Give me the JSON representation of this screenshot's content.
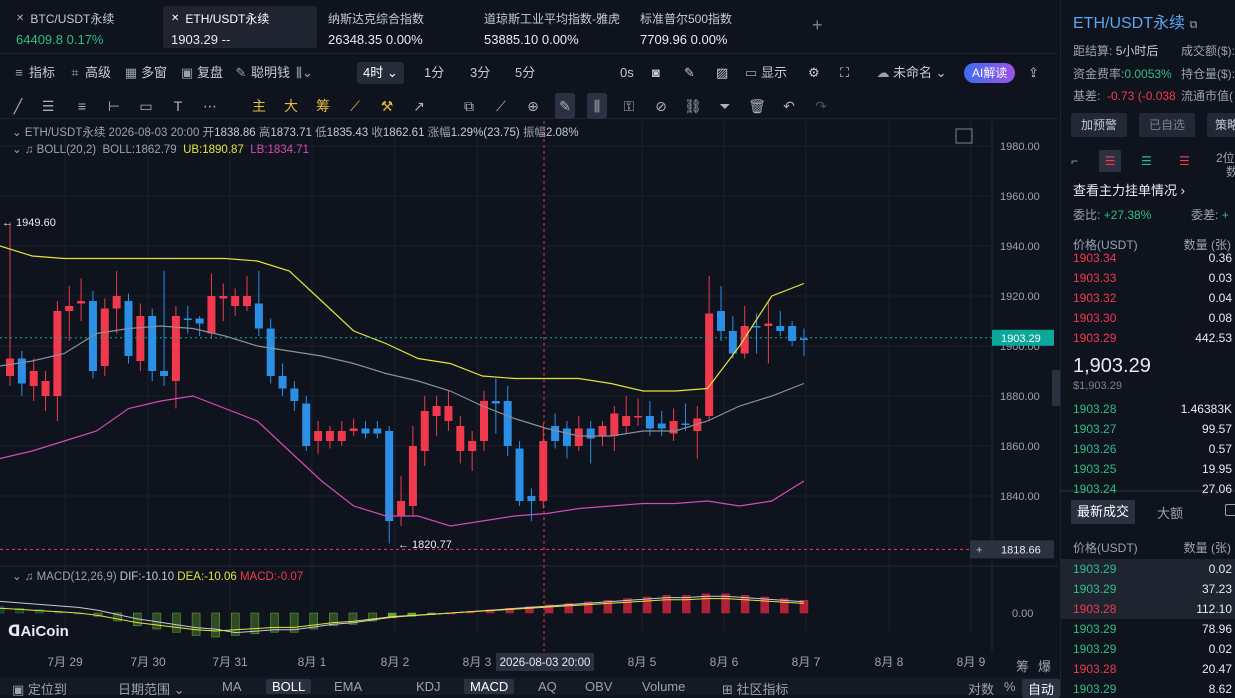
{
  "tickers": [
    {
      "name": "BTC/USDT永续",
      "price": "64409.8",
      "change": "0.17%",
      "color": "green"
    },
    {
      "name": "ETH/USDT永续",
      "price": "1903.29",
      "change": "--",
      "color": "white"
    },
    {
      "name": "纳斯达克综合指数",
      "price": "26348.35",
      "change": "0.00%",
      "color": "white"
    },
    {
      "name": "道琼斯工业平均指数-雅虎",
      "price": "53885.10",
      "change": "0.00%",
      "color": "white"
    },
    {
      "name": "标准普尔500指数",
      "price": "7709.96",
      "change": "0.00%",
      "color": "white"
    }
  ],
  "add_tab": "+",
  "toolbar": {
    "indicators": "指标",
    "advanced": "高级",
    "multi": "多窗",
    "replay": "复盘",
    "smart": "聪明钱",
    "interval": "4时",
    "i1": "1分",
    "i3": "3分",
    "i5": "5分",
    "zero": "0s",
    "display": "显示",
    "unnamed": "未命名",
    "ai": "AI解读"
  },
  "draw_tools": {
    "main": "主",
    "big": "大",
    "chip": "筹"
  },
  "legend": {
    "symbol": "ETH/USDT永续",
    "time": "2026-08-03 20:00",
    "open_l": "开",
    "open": "1838.86",
    "high_l": "高",
    "high": "1873.71",
    "low_l": "低",
    "low": "1835.43",
    "close_l": "收",
    "close": "1862.61",
    "chg_l": "涨幅",
    "chg": "1.29%(23.75)",
    "amp_l": "振幅",
    "amp": "2.08%",
    "boll_name": "BOLL(20,2)",
    "boll": "BOLL:1862.79",
    "ub": "UB:1890.87",
    "lb": "LB:1834.71",
    "macd_name": "MACD(12,26,9)",
    "dif": "DIF:-10.10",
    "dea": "DEA:-10.06",
    "macd": "MACD:-0.07"
  },
  "chart_data": {
    "type": "candlestick",
    "y_ticks": [
      "1980.00",
      "1960.00",
      "1940.00",
      "1920.00",
      "1900.00",
      "1880.00",
      "1860.00",
      "1840.00"
    ],
    "ylim": [
      1814,
      1990
    ],
    "x_ticks": [
      "7月 29",
      "7月 30",
      "7月 31",
      "8月 1",
      "8月 2",
      "8月 3",
      "8月 5",
      "8月 6",
      "8月 7",
      "8月 8",
      "8月 9"
    ],
    "crosshair_time": "2026-08-03 20:00",
    "current_price": "1903.29",
    "cursor_price": "1818.66",
    "high_mark": "1949.60",
    "low_mark": "1820.77",
    "macd_zero": "0.00",
    "candles": [
      [
        1895,
        1888,
        1949.6,
        1884,
        "red"
      ],
      [
        1885,
        1895,
        1898,
        1880,
        "blue"
      ],
      [
        1890,
        1884,
        1895,
        1878,
        "red"
      ],
      [
        1886,
        1880,
        1890,
        1874,
        "red"
      ],
      [
        1880,
        1914,
        1918,
        1870,
        "red"
      ],
      [
        1914,
        1916,
        1924,
        1902,
        "red"
      ],
      [
        1917,
        1918,
        1927,
        1910,
        "red"
      ],
      [
        1918,
        1890,
        1922,
        1887,
        "blue"
      ],
      [
        1892,
        1915,
        1919,
        1888,
        "red"
      ],
      [
        1915,
        1920,
        1930,
        1905,
        "red"
      ],
      [
        1918,
        1896,
        1921,
        1893,
        "blue"
      ],
      [
        1894,
        1912,
        1917,
        1890,
        "red"
      ],
      [
        1912,
        1890,
        1915,
        1886,
        "blue"
      ],
      [
        1890,
        1888,
        1930,
        1884,
        "blue"
      ],
      [
        1886,
        1912,
        1916,
        1875,
        "red"
      ],
      [
        1911,
        1911,
        1916,
        1905,
        "blue"
      ],
      [
        1911,
        1909,
        1912,
        1904,
        "blue"
      ],
      [
        1905,
        1920,
        1929,
        1903,
        "red"
      ],
      [
        1920,
        1919,
        1925,
        1910,
        "red"
      ],
      [
        1920,
        1916,
        1923,
        1912,
        "red"
      ],
      [
        1916,
        1920,
        1928,
        1914,
        "red"
      ],
      [
        1917,
        1907,
        1930,
        1904,
        "blue"
      ],
      [
        1907,
        1888,
        1911,
        1885,
        "blue"
      ],
      [
        1888,
        1883,
        1893,
        1880,
        "blue"
      ],
      [
        1883,
        1878,
        1886,
        1874,
        "blue"
      ],
      [
        1877,
        1860,
        1880,
        1858,
        "blue"
      ],
      [
        1862,
        1866,
        1870,
        1857,
        "red"
      ],
      [
        1866,
        1862,
        1868,
        1859,
        "red"
      ],
      [
        1862,
        1866,
        1870,
        1860,
        "red"
      ],
      [
        1866,
        1867,
        1871,
        1864,
        "red"
      ],
      [
        1867,
        1865,
        1870,
        1863,
        "blue"
      ],
      [
        1865,
        1867,
        1870,
        1863,
        "blue"
      ],
      [
        1866,
        1830,
        1868,
        1821,
        "blue"
      ],
      [
        1832,
        1838,
        1848,
        1828,
        "red"
      ],
      [
        1836,
        1860,
        1868,
        1832,
        "red"
      ],
      [
        1858,
        1874,
        1880,
        1852,
        "red"
      ],
      [
        1872,
        1876,
        1880,
        1864,
        "red"
      ],
      [
        1876,
        1870,
        1882,
        1866,
        "red"
      ],
      [
        1868,
        1858,
        1872,
        1853,
        "red"
      ],
      [
        1858,
        1862,
        1866,
        1850,
        "red"
      ],
      [
        1862,
        1878,
        1882,
        1858,
        "red"
      ],
      [
        1878,
        1877,
        1887,
        1865,
        "blue"
      ],
      [
        1878,
        1860,
        1884,
        1856,
        "blue"
      ],
      [
        1859,
        1838,
        1862,
        1836,
        "blue"
      ],
      [
        1840,
        1838,
        1843,
        1830,
        "blue"
      ],
      [
        1838,
        1862,
        1869,
        1835,
        "red"
      ],
      [
        1862,
        1868,
        1873,
        1859,
        "blue"
      ],
      [
        1867,
        1860,
        1870,
        1855,
        "blue"
      ],
      [
        1860,
        1867,
        1872,
        1858,
        "red"
      ],
      [
        1867,
        1863,
        1870,
        1853,
        "blue"
      ],
      [
        1864,
        1868,
        1870,
        1860,
        "red"
      ],
      [
        1864,
        1873,
        1876,
        1858,
        "red"
      ],
      [
        1868,
        1872,
        1880,
        1865,
        "red"
      ],
      [
        1872,
        1872,
        1879,
        1868,
        "red"
      ],
      [
        1872,
        1867,
        1878,
        1864,
        "blue"
      ],
      [
        1867,
        1869,
        1874,
        1864,
        "blue"
      ],
      [
        1865,
        1870,
        1875,
        1862,
        "red"
      ],
      [
        1869,
        1869,
        1877,
        1866,
        "blue"
      ],
      [
        1866,
        1871,
        1876,
        1855,
        "red"
      ],
      [
        1872,
        1913,
        1928,
        1870,
        "red"
      ],
      [
        1914,
        1906,
        1924,
        1902,
        "blue"
      ],
      [
        1906,
        1897,
        1912,
        1895,
        "blue"
      ],
      [
        1897,
        1908,
        1916,
        1895,
        "red"
      ],
      [
        1908,
        1908,
        1913,
        1897,
        "blue"
      ],
      [
        1908,
        1909,
        1918,
        1893,
        "red"
      ],
      [
        1906,
        1908,
        1914,
        1904,
        "blue"
      ],
      [
        1908,
        1902,
        1910,
        1900,
        "blue"
      ],
      [
        1903,
        1903,
        1907,
        1896,
        "blue"
      ]
    ],
    "boll_ub": [
      1940,
      1936,
      1935,
      1935,
      1935,
      1935,
      1935,
      1935,
      1934,
      1930,
      1918,
      1906,
      1901,
      1895,
      1893,
      1888,
      1887,
      1887,
      1887,
      1885,
      1882,
      1882,
      1883,
      1900,
      1920,
      1925
    ],
    "boll_mid": [
      1892,
      1894,
      1897,
      1905,
      1907,
      1908,
      1907,
      1904,
      1900,
      1898,
      1896,
      1893,
      1889,
      1886,
      1882,
      1876,
      1871,
      1867,
      1864,
      1864,
      1866,
      1866,
      1870,
      1876,
      1880,
      1885
    ],
    "boll_lb": [
      1855,
      1858,
      1862,
      1866,
      1875,
      1878,
      1880,
      1875,
      1870,
      1858,
      1846,
      1836,
      1832,
      1832,
      1828,
      1830,
      1832,
      1833,
      1835,
      1836,
      1837,
      1837,
      1838,
      1836,
      1838,
      1846
    ],
    "macd_hist": [
      4,
      3,
      2,
      1,
      0,
      -2,
      -5,
      -8,
      -10,
      -12,
      -14,
      -15,
      -14,
      -13,
      -12,
      -12,
      -10,
      -8,
      -7,
      -5,
      -3,
      -2,
      -1,
      0,
      1,
      2,
      3,
      4,
      5,
      6,
      7,
      8,
      9,
      10,
      11,
      11,
      12,
      12,
      11,
      10,
      9,
      8
    ]
  },
  "bottom_bar": {
    "locate": "定位到",
    "range": "日期范围",
    "ma": "MA",
    "boll": "BOLL",
    "ema": "EMA",
    "kdj": "KDJ",
    "macd": "MACD",
    "aq": "AQ",
    "obv": "OBV",
    "volume": "Volume",
    "community": "社区指标",
    "log": "对数",
    "pct": "%",
    "auto": "自动",
    "chou": "筹",
    "bao": "爆"
  },
  "logo": "AiCoin",
  "right": {
    "title": "ETH/USDT永续",
    "funding_settle_l": "距结算:",
    "funding_settle": "5小时后",
    "vol_l": "成交额($):",
    "fund_rate_l": "资金费率:",
    "fund_rate": "0.0053%",
    "oi_l": "持仓量($):",
    "basis_l": "基差:",
    "basis": "-0.73 (-0.038",
    "mcap_l": "流通市值(",
    "btn_alert": "加预警",
    "btn_fav": "已自选",
    "btn_strategy": "策略",
    "depth_link": "查看主力挂单情况",
    "ratio_l": "委比:",
    "ratio": "+27.38%",
    "diff_l": "委差:",
    "diff": "+",
    "side_tab": "2位",
    "side_tab2": "数",
    "col_price": "价格(USDT)",
    "col_qty": "数量 (张)",
    "asks": [
      {
        "p": "1903.34",
        "q": "0.36"
      },
      {
        "p": "1903.33",
        "q": "0.03"
      },
      {
        "p": "1903.32",
        "q": "0.04"
      },
      {
        "p": "1903.30",
        "q": "0.08"
      },
      {
        "p": "1903.29",
        "q": "442.53"
      }
    ],
    "last": "1,903.29",
    "last_usd": "$1,903.29",
    "bids": [
      {
        "p": "1903.28",
        "q": "1.46383K"
      },
      {
        "p": "1903.27",
        "q": "99.57"
      },
      {
        "p": "1903.26",
        "q": "0.57"
      },
      {
        "p": "1903.25",
        "q": "19.95"
      },
      {
        "p": "1903.24",
        "q": "27.06"
      }
    ],
    "trades_tab": "最新成交",
    "big_tab": "大额",
    "trades": [
      {
        "p": "1903.29",
        "q": "0.02",
        "c": "green"
      },
      {
        "p": "1903.29",
        "q": "37.23",
        "c": "green"
      },
      {
        "p": "1903.28",
        "q": "112.10",
        "c": "red"
      },
      {
        "p": "1903.29",
        "q": "78.96",
        "c": "green"
      },
      {
        "p": "1903.29",
        "q": "0.02",
        "c": "green"
      },
      {
        "p": "1903.28",
        "q": "20.47",
        "c": "red"
      },
      {
        "p": "1903.29",
        "q": "8.62",
        "c": "green"
      }
    ]
  },
  "colors": {
    "up": "#f0394d",
    "down": "#2b8fe6",
    "ub": "#e7e23a",
    "mid": "#8a8f9a",
    "lb": "#d34bb8",
    "green": "#2fbd85",
    "teal": "#0aa89b"
  }
}
